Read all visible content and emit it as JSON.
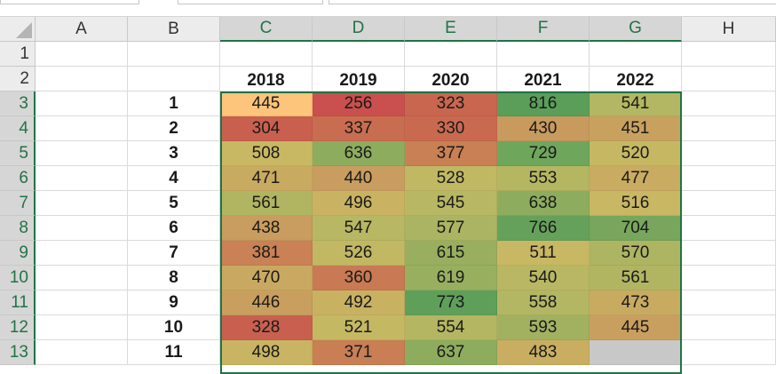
{
  "columns": [
    "A",
    "B",
    "C",
    "D",
    "E",
    "F",
    "G",
    "H"
  ],
  "selected_columns": [
    "C",
    "D",
    "E",
    "F",
    "G"
  ],
  "years": [
    "2018",
    "2019",
    "2020",
    "2021",
    "2022"
  ],
  "rows": [
    {
      "num": "1",
      "label": "",
      "values": [
        "",
        "",
        "",
        "",
        ""
      ]
    },
    {
      "num": "2",
      "label": "",
      "values": [
        "2018",
        "2019",
        "2020",
        "2021",
        "2022"
      ]
    },
    {
      "num": "3",
      "label": "1",
      "values": [
        "445",
        "256",
        "323",
        "816",
        "541"
      ],
      "colors": [
        "#fdc47b",
        "#c9504e",
        "#c9664f",
        "#5a9e5a",
        "#b3b763"
      ]
    },
    {
      "num": "4",
      "label": "2",
      "values": [
        "304",
        "337",
        "330",
        "430",
        "451"
      ],
      "colors": [
        "#c9604f",
        "#c96d50",
        "#c96a50",
        "#c89a5e",
        "#c9a15f"
      ]
    },
    {
      "num": "5",
      "label": "3",
      "values": [
        "508",
        "636",
        "377",
        "729",
        "520"
      ],
      "colors": [
        "#c9b863",
        "#8eac5e",
        "#c98054",
        "#6ea65c",
        "#c6b863"
      ]
    },
    {
      "num": "6",
      "label": "4",
      "values": [
        "471",
        "440",
        "528",
        "553",
        "477"
      ],
      "colors": [
        "#c9aa61",
        "#c99d5f",
        "#c1b863",
        "#b5b662",
        "#c9ab61"
      ]
    },
    {
      "num": "7",
      "label": "5",
      "values": [
        "561",
        "496",
        "545",
        "638",
        "516"
      ],
      "colors": [
        "#b1b562",
        "#c9b363",
        "#b8b763",
        "#8eac5e",
        "#c9b763"
      ]
    },
    {
      "num": "8",
      "label": "6",
      "values": [
        "438",
        "547",
        "577",
        "766",
        "704"
      ],
      "colors": [
        "#c99c5f",
        "#b8b763",
        "#aab462",
        "#66a15b",
        "#77a65c"
      ]
    },
    {
      "num": "9",
      "label": "7",
      "values": [
        "381",
        "526",
        "615",
        "511",
        "570"
      ],
      "colors": [
        "#c98155",
        "#c2b863",
        "#99af5f",
        "#c9b863",
        "#adb562"
      ]
    },
    {
      "num": "10",
      "label": "8",
      "values": [
        "470",
        "360",
        "619",
        "540",
        "561"
      ],
      "colors": [
        "#c9a961",
        "#c97953",
        "#98af5f",
        "#b9b763",
        "#b1b562"
      ]
    },
    {
      "num": "11",
      "label": "9",
      "values": [
        "446",
        "492",
        "773",
        "558",
        "473"
      ],
      "colors": [
        "#c99f5f",
        "#c9b162",
        "#5f9f5a",
        "#b3b663",
        "#c9aa61"
      ]
    },
    {
      "num": "12",
      "label": "10",
      "values": [
        "328",
        "521",
        "554",
        "593",
        "445"
      ],
      "colors": [
        "#c9604f",
        "#c5b863",
        "#b4b662",
        "#a2b160",
        "#c99f5f"
      ]
    },
    {
      "num": "13",
      "label": "11",
      "values": [
        "498",
        "371",
        "637",
        "483",
        ""
      ],
      "colors": [
        "#c9b463",
        "#c97e54",
        "#8eac5e",
        "#c9ae62",
        "#c8c8c8"
      ]
    }
  ]
}
